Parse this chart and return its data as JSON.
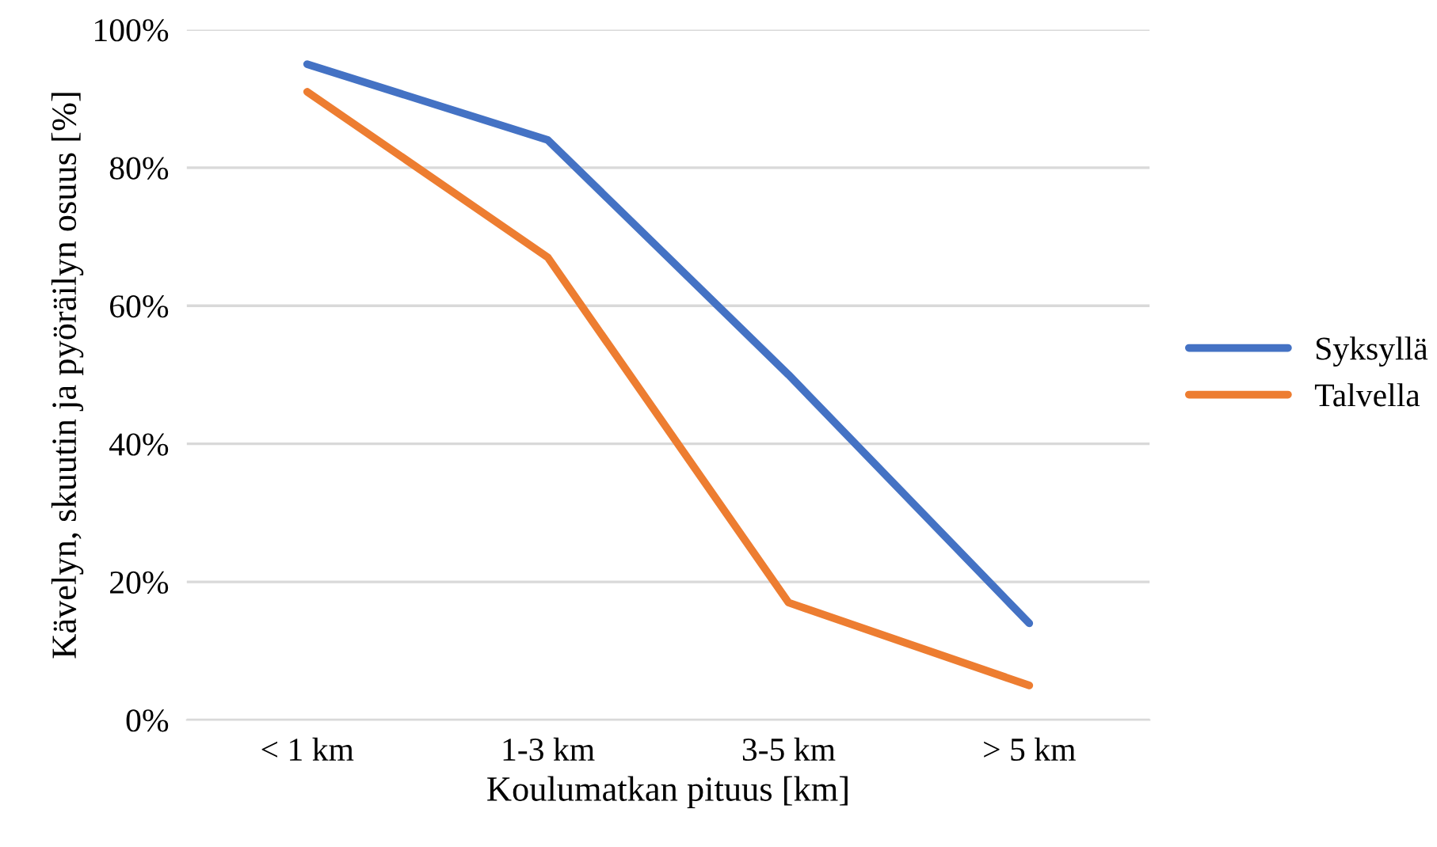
{
  "chart_data": {
    "type": "line",
    "xlabel": "Koulumatkan pituus [km]",
    "ylabel": "Kävelyn, skuutin ja pyöräilyn osuus [%]",
    "categories": [
      "< 1 km",
      "1-3 km",
      "3-5 km",
      "> 5 km"
    ],
    "series": [
      {
        "name": "Syksyllä",
        "color": "#4472c4",
        "values": [
          95,
          84,
          50,
          14
        ]
      },
      {
        "name": "Talvella",
        "color": "#ed7d31",
        "values": [
          91,
          67,
          17,
          5
        ]
      }
    ],
    "ylim": [
      0,
      100
    ],
    "yticks": [
      {
        "value": 0,
        "label": "0%"
      },
      {
        "value": 20,
        "label": "20%"
      },
      {
        "value": 40,
        "label": "40%"
      },
      {
        "value": 60,
        "label": "60%"
      },
      {
        "value": 80,
        "label": "80%"
      },
      {
        "value": 100,
        "label": "100%"
      }
    ],
    "grid": "y",
    "legend": "right",
    "marker": "none",
    "line_style": "solid"
  }
}
